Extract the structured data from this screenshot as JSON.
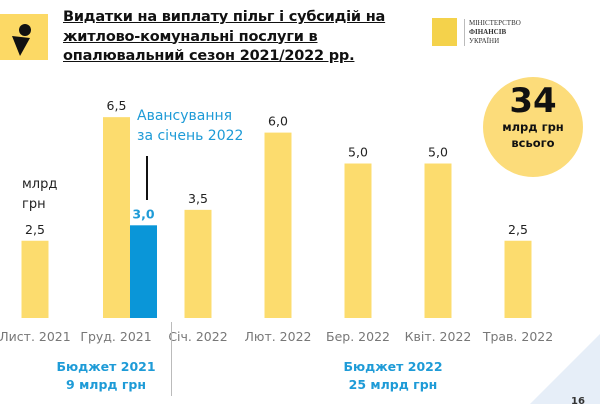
{
  "header": {
    "title_lines": [
      "Видатки на виплату пільг і субсидій на",
      "житлово-комунальні послуги в",
      "опалювальний сезон 2021/2022 рр."
    ],
    "ministry": [
      "МІНІСТЕРСТВО",
      "ФІНАНСІВ",
      "УКРАЇНИ"
    ]
  },
  "total": {
    "value": "34",
    "unit": "млрд грн",
    "note": "всього"
  },
  "annotation": {
    "lines": [
      "Авансування",
      "за січень 2022"
    ]
  },
  "budgets": [
    {
      "line1": "Бюджет 2021",
      "line2": "9 млрд грн"
    },
    {
      "line1": "Бюджет 2022",
      "line2": "25 млрд грн"
    }
  ],
  "page_number": "16",
  "colors": {
    "main": "#fcdc6e",
    "advance": "#0a96d8",
    "accent_text": "#1e9bd7"
  },
  "chart_data": {
    "type": "bar",
    "ylabel": "млрд грн",
    "ylim": [
      0,
      7
    ],
    "grid": false,
    "categories": [
      "Лист. 2021",
      "Груд. 2021",
      "Січ. 2022",
      "Лют. 2022",
      "Бер. 2022",
      "Квіт. 2022",
      "Трав. 2022"
    ],
    "series": [
      {
        "values": [
          2.5,
          6.5,
          3.5,
          6.0,
          5.0,
          5.0,
          2.5
        ],
        "labels": [
          "2,5",
          "6,5",
          "3,5",
          "6,0",
          "5,0",
          "5,0",
          "2,5"
        ]
      },
      {
        "name": "Авансування за січень 2022",
        "values": [
          null,
          3.0,
          null,
          null,
          null,
          null,
          null
        ],
        "labels": [
          null,
          "3,0",
          null,
          null,
          null,
          null,
          null
        ]
      }
    ]
  }
}
